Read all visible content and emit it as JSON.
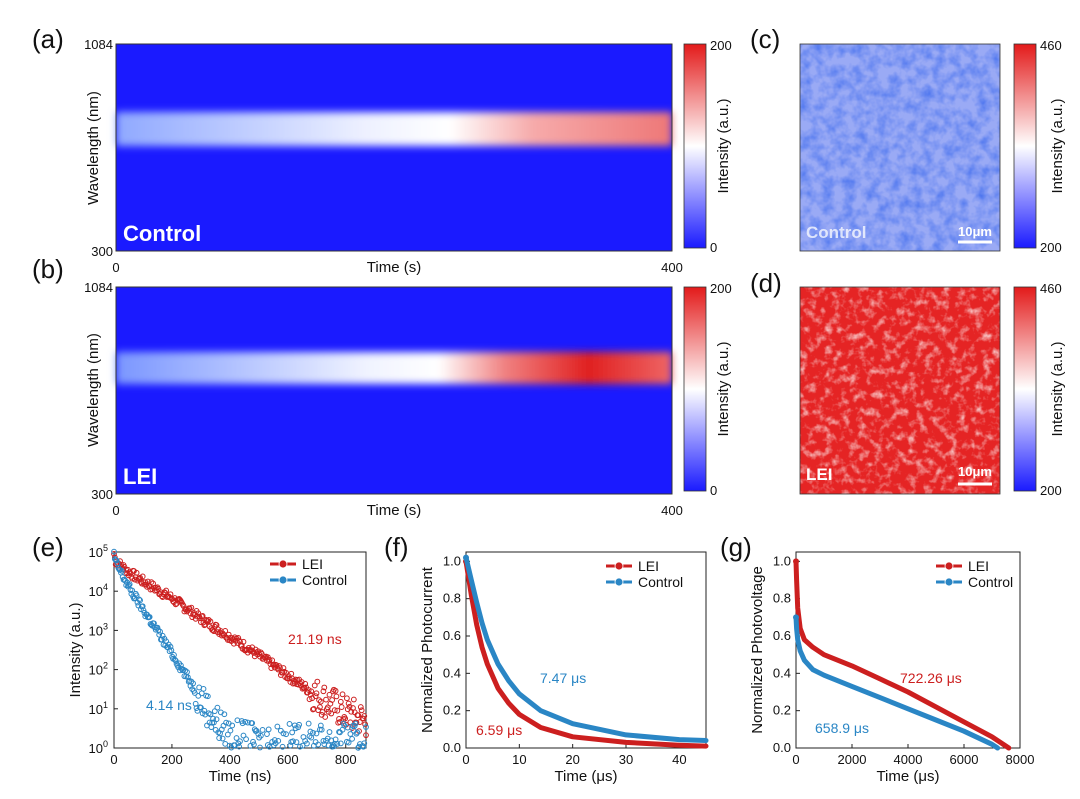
{
  "colors": {
    "red": "#cc1f1f",
    "blue": "#2a86c5",
    "map_low": "#1a1aff",
    "map_mid": "#ffffff",
    "map_high": "#e31a1a"
  },
  "panels": {
    "a": {
      "label": "(a)",
      "overlay": "Control",
      "xlabel": "Time (s)",
      "ylabel": "Wavelength (nm)",
      "y_ticks": [
        "1084",
        "300"
      ],
      "x_ticks": [
        "0",
        "400"
      ],
      "cbar_label": "Intensity (a.u.)",
      "cbar_ticks": [
        "200",
        "0"
      ]
    },
    "b": {
      "label": "(b)",
      "overlay": "LEI",
      "xlabel": "Time (s)",
      "ylabel": "Wavelength (nm)",
      "y_ticks": [
        "1084",
        "300"
      ],
      "x_ticks": [
        "0",
        "400"
      ],
      "cbar_label": "Intensity (a.u.)",
      "cbar_ticks": [
        "200",
        "0"
      ]
    },
    "c": {
      "label": "(c)",
      "overlay": "Control",
      "scalebar": "10μm",
      "cbar_label": "Intensity (a.u.)",
      "cbar_ticks": [
        "460",
        "200"
      ]
    },
    "d": {
      "label": "(d)",
      "overlay": "LEI",
      "scalebar": "10μm",
      "cbar_label": "Intensity (a.u.)",
      "cbar_ticks": [
        "460",
        "200"
      ]
    },
    "e": {
      "label": "(e)",
      "annotations": [
        "21.19 ns",
        "4.14 ns"
      ]
    },
    "f": {
      "label": "(f)",
      "annotations": [
        "7.47 μs",
        "6.59 μs"
      ]
    },
    "g": {
      "label": "(g)",
      "annotations": [
        "722.26 μs",
        "658.9 μs"
      ]
    }
  },
  "chart_data": [
    {
      "id": "e",
      "type": "scatter",
      "yscale": "log",
      "xlabel": "Time (ns)",
      "ylabel": "Intensity (a.u.)",
      "xlim": [
        0,
        870
      ],
      "ylim": [
        1,
        100000
      ],
      "x_ticks": [
        0,
        200,
        400,
        600,
        800
      ],
      "y_ticks": [
        "10^0",
        "10^1",
        "10^2",
        "10^3",
        "10^4",
        "10^5"
      ],
      "legend": "top-right",
      "series": [
        {
          "name": "LEI",
          "color": "#cc1f1f",
          "x": [
            0,
            5,
            50,
            100,
            200,
            300,
            400,
            500,
            600,
            700,
            800,
            870
          ],
          "y": [
            90000,
            60000,
            31000,
            18000,
            6600,
            2000,
            700,
            230,
            70,
            22,
            8,
            5
          ]
        },
        {
          "name": "Control",
          "color": "#2a86c5",
          "x": [
            0,
            5,
            50,
            100,
            150,
            200,
            250,
            300,
            350,
            400,
            500,
            600,
            700,
            870
          ],
          "y": [
            90000,
            55000,
            13000,
            3500,
            950,
            260,
            70,
            18,
            5,
            2,
            1.5,
            1.5,
            1.5,
            1.5
          ]
        }
      ]
    },
    {
      "id": "f",
      "type": "line",
      "xlabel": "Time (μs)",
      "ylabel": "Normalized Photocurrent",
      "xlim": [
        0,
        45
      ],
      "ylim": [
        0,
        1.05
      ],
      "x_ticks": [
        0,
        10,
        20,
        30,
        40
      ],
      "y_ticks": [
        0.0,
        0.2,
        0.4,
        0.6,
        0.8,
        1.0
      ],
      "legend": "top-right",
      "series": [
        {
          "name": "LEI",
          "color": "#cc1f1f",
          "x": [
            0,
            1,
            2,
            3,
            4,
            6,
            8,
            10,
            14,
            20,
            30,
            40,
            45
          ],
          "y": [
            1.0,
            0.82,
            0.66,
            0.54,
            0.45,
            0.32,
            0.24,
            0.18,
            0.11,
            0.06,
            0.03,
            0.015,
            0.01
          ]
        },
        {
          "name": "Control",
          "color": "#2a86c5",
          "x": [
            0,
            1,
            2,
            3,
            4,
            6,
            8,
            10,
            14,
            20,
            30,
            40,
            45
          ],
          "y": [
            1.02,
            0.9,
            0.78,
            0.67,
            0.58,
            0.45,
            0.36,
            0.29,
            0.2,
            0.13,
            0.07,
            0.045,
            0.04
          ]
        }
      ]
    },
    {
      "id": "g",
      "type": "line",
      "xlabel": "Time (μs)",
      "ylabel": "Normalized Photovoltage",
      "xlim": [
        0,
        8000
      ],
      "ylim": [
        0,
        1.05
      ],
      "x_ticks": [
        0,
        2000,
        4000,
        6000,
        8000
      ],
      "y_ticks": [
        0.0,
        0.2,
        0.4,
        0.6,
        0.8,
        1.0
      ],
      "legend": "top-right",
      "series": [
        {
          "name": "LEI",
          "color": "#cc1f1f",
          "x": [
            0,
            20,
            60,
            150,
            300,
            600,
            1000,
            2000,
            3000,
            4000,
            5000,
            6000,
            7000,
            7600
          ],
          "y": [
            1.0,
            0.9,
            0.75,
            0.64,
            0.58,
            0.54,
            0.5,
            0.44,
            0.37,
            0.3,
            0.22,
            0.14,
            0.06,
            0.0
          ]
        },
        {
          "name": "Control",
          "color": "#2a86c5",
          "x": [
            0,
            20,
            60,
            150,
            300,
            600,
            1000,
            2000,
            3000,
            4000,
            5000,
            6000,
            7000,
            7200
          ],
          "y": [
            0.7,
            0.64,
            0.58,
            0.52,
            0.47,
            0.42,
            0.39,
            0.33,
            0.27,
            0.21,
            0.15,
            0.09,
            0.02,
            0.0
          ]
        }
      ]
    }
  ]
}
